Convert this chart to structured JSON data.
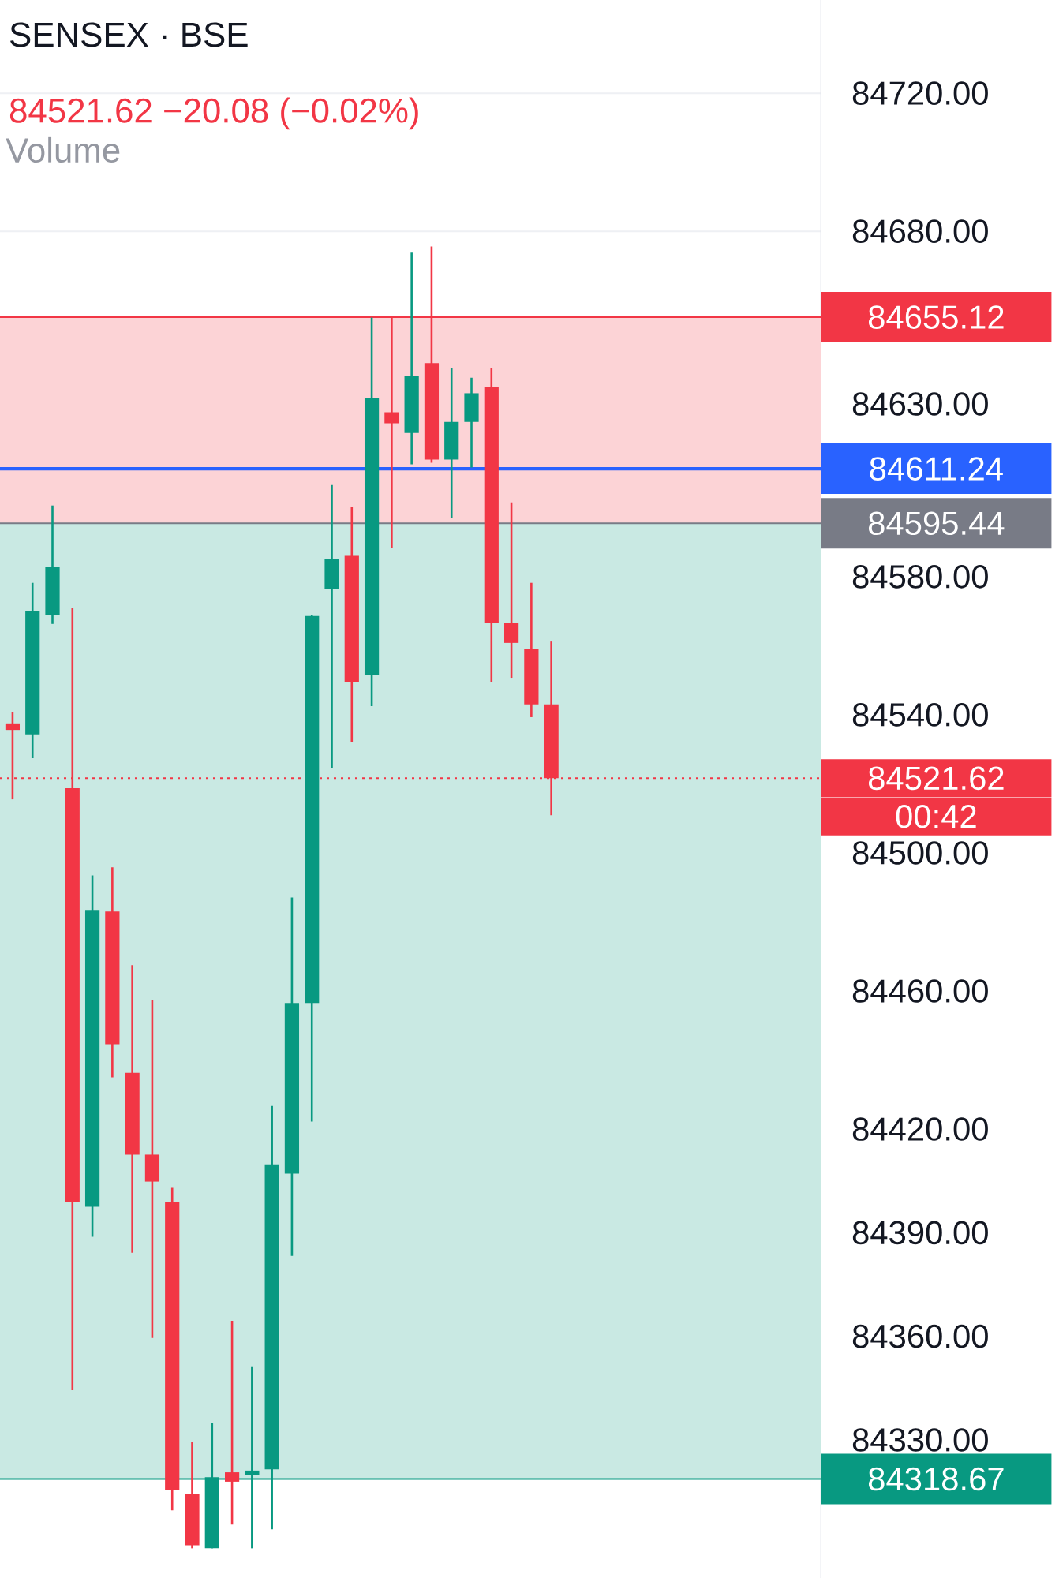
{
  "chart_data": {
    "type": "candlestick",
    "title": "SENSEX · BSE",
    "subtitle": "84521.62 −20.08 (−0.02%)",
    "annotations": [
      "Volume",
      "00:42"
    ],
    "categories": [
      null,
      null,
      null,
      null,
      null,
      null,
      null,
      null,
      null,
      null,
      null,
      null,
      null,
      null,
      null,
      null,
      null,
      null,
      null,
      null,
      null,
      null,
      null,
      null,
      null,
      null,
      null,
      null,
      null,
      null,
      null,
      null,
      null,
      null,
      null,
      null,
      null,
      null,
      null,
      null,
      null
    ],
    "ohlc": [
      [
        84537.5,
        84540.7,
        84515.5,
        84535.6
      ],
      [
        84534.3,
        84578.2,
        84527.4,
        84569.9
      ],
      [
        84569.0,
        84600.6,
        84566.3,
        84582.7
      ],
      [
        84518.7,
        84570.9,
        84344.4,
        84398.8
      ],
      [
        84397.5,
        84493.5,
        84388.8,
        84483.5
      ],
      [
        84483.0,
        84495.8,
        84435.0,
        84444.6
      ],
      [
        84436.3,
        84467.5,
        84384.2,
        84412.6
      ],
      [
        84412.6,
        84457.4,
        84359.5,
        84404.8
      ],
      [
        84398.8,
        84403.0,
        84309.6,
        84315.6
      ],
      [
        84314.2,
        84329.3,
        84298.6,
        84299.5
      ],
      [
        84298.6,
        84334.8,
        84298.6,
        84319.2
      ],
      [
        84320.6,
        84364.5,
        84305.5,
        84317.9
      ],
      [
        84319.7,
        84351.3,
        84298.6,
        84321.1
      ],
      [
        84321.5,
        84426.7,
        84304.1,
        84409.8
      ],
      [
        84407.1,
        84487.1,
        84383.3,
        84456.5
      ],
      [
        84456.5,
        84569.0,
        84422.2,
        84568.6
      ],
      [
        84576.3,
        84606.5,
        84524.6,
        84585.0
      ],
      [
        84586.0,
        84600.1,
        84532.0,
        84549.4
      ],
      [
        84551.6,
        84655.0,
        84542.5,
        84631.7
      ],
      [
        84627.6,
        84655.0,
        84588.2,
        84624.4
      ],
      [
        84621.6,
        84673.8,
        84612.5,
        84638.1
      ],
      [
        84641.8,
        84675.6,
        84613.0,
        84613.9
      ],
      [
        84613.9,
        84640.4,
        84596.9,
        84624.8
      ],
      [
        84624.8,
        84637.6,
        84611.6,
        84633.1
      ],
      [
        84634.9,
        84640.4,
        84549.4,
        84566.7
      ],
      [
        84566.7,
        84601.5,
        84550.7,
        84560.8
      ],
      [
        84559.0,
        84578.2,
        84539.3,
        84543.0
      ],
      [
        84543.0,
        84561.2,
        84510.9,
        84521.62
      ],
      null,
      null,
      null,
      null,
      null,
      null,
      null,
      null,
      null,
      null,
      null,
      null,
      null
    ],
    "colors": [
      "#f23645",
      "#089981",
      "#089981",
      "#f23645",
      "#089981",
      "#f23645",
      "#f23645",
      "#f23645",
      "#f23645",
      "#f23645",
      "#089981",
      "#f23645",
      "#089981",
      "#089981",
      "#089981",
      "#089981",
      "#089981",
      "#f23645",
      "#089981",
      "#f23645",
      "#089981",
      "#f23645",
      "#089981",
      "#089981",
      "#f23645",
      "#f23645",
      "#f23645",
      "#f23645",
      null,
      null,
      null,
      null,
      null,
      null,
      null,
      null,
      null,
      null,
      null,
      null,
      null
    ],
    "ylim": [
      84290,
      84747
    ],
    "yticks": [
      {
        "value": 84720,
        "label": "84720.00"
      },
      {
        "value": 84680,
        "label": "84680.00"
      },
      {
        "value": 84630,
        "label": "84630.00"
      },
      {
        "value": 84580,
        "label": "84580.00"
      },
      {
        "value": 84540,
        "label": "84540.00"
      },
      {
        "value": 84500,
        "label": "84500.00"
      },
      {
        "value": 84460,
        "label": "84460.00"
      },
      {
        "value": 84420,
        "label": "84420.00"
      },
      {
        "value": 84390,
        "label": "84390.00"
      },
      {
        "value": 84360,
        "label": "84360.00"
      },
      {
        "value": 84330,
        "label": "84330.00"
      }
    ],
    "bands": [
      {
        "axis": "y",
        "from": 84595.44,
        "to": 84655.12,
        "color": "#fcd3d6"
      },
      {
        "axis": "y",
        "from": 84318.67,
        "to": 84595.44,
        "color": "#c9e9e3"
      }
    ],
    "ref_lines": [
      {
        "axis": "y",
        "value": 84655.12,
        "label": "84655.12",
        "color": "#f23645",
        "line_style": "solid"
      },
      {
        "axis": "y",
        "value": 84318.67,
        "label": "84318.67",
        "color": "#089981",
        "line_style": "solid"
      },
      {
        "axis": "y",
        "value": 84611.24,
        "label": "84611.24",
        "color": "#2962ff",
        "line_style": "solid"
      },
      {
        "axis": "y",
        "value": 84595.44,
        "label": "84595.44",
        "color": "#787b86",
        "line_style": "solid"
      },
      {
        "axis": "y",
        "value": 84521.62,
        "label": "84521.62",
        "color": "#f23645",
        "line_style": "dotted"
      }
    ],
    "grid": "y"
  }
}
